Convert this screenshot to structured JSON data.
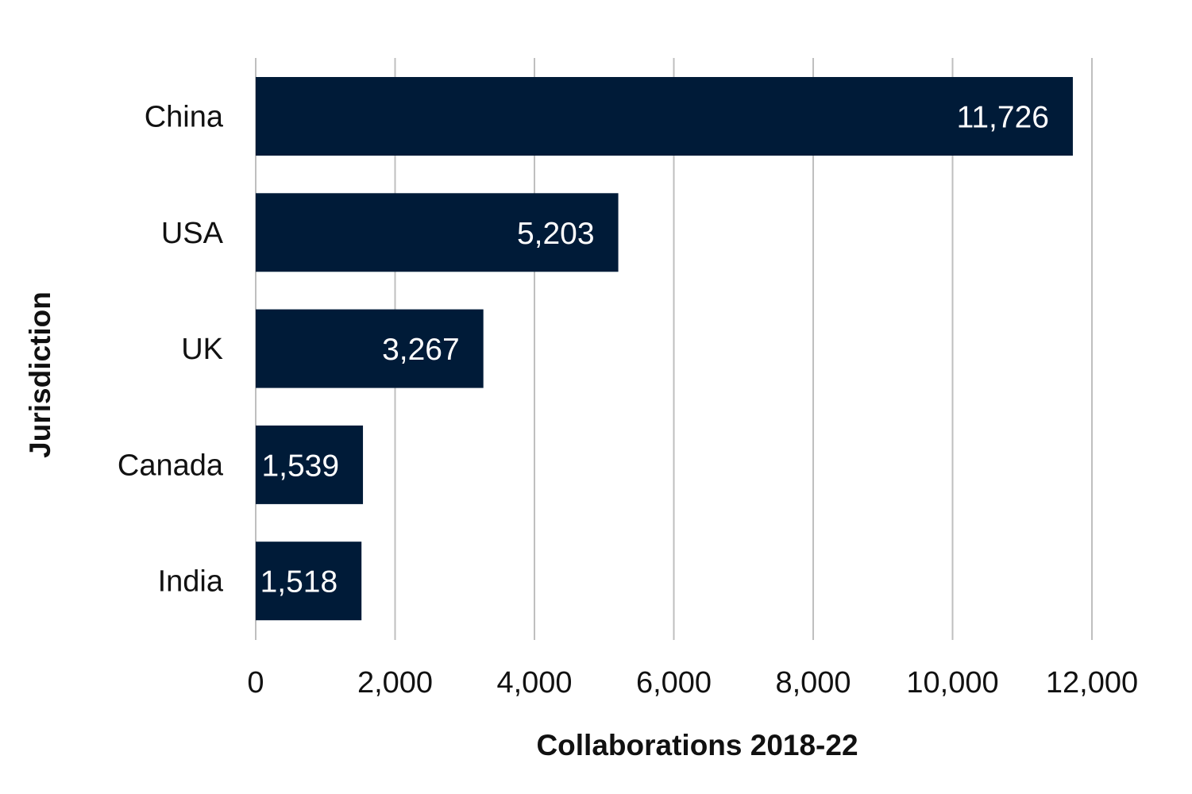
{
  "chart_data": {
    "type": "bar",
    "orientation": "horizontal",
    "categories": [
      "China",
      "USA",
      "UK",
      "Canada",
      "India"
    ],
    "values": [
      11726,
      5203,
      3267,
      1539,
      1518
    ],
    "value_labels": [
      "11,726",
      "5,203",
      "3,267",
      "1,539",
      "1,518"
    ],
    "xlabel": "Collaborations 2018-22",
    "ylabel": "Jurisdiction",
    "xlim": [
      0,
      12000
    ],
    "xticks": [
      0,
      2000,
      4000,
      6000,
      8000,
      10000,
      12000
    ],
    "xtick_labels": [
      "0",
      "2,000",
      "4,000",
      "6,000",
      "8,000",
      "10,000",
      "12,000"
    ],
    "grid": "vertical",
    "legend": "none",
    "colors": {
      "bar": "#001b38",
      "gridline": "#bfbfbf",
      "value_label": "#ffffff",
      "text": "#111111"
    }
  }
}
